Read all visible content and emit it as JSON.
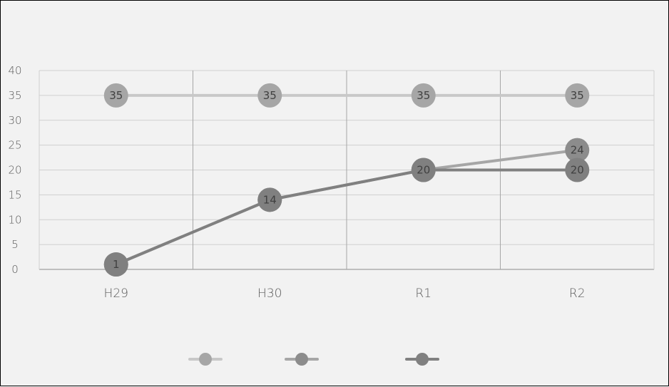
{
  "chart_data": {
    "type": "line",
    "title": "",
    "xlabel": "",
    "ylabel": "",
    "categories": [
      "H29",
      "H30",
      "R1",
      "R2"
    ],
    "ylim": [
      0,
      40
    ],
    "yticks": [
      0,
      5,
      10,
      15,
      20,
      25,
      30,
      35,
      40
    ],
    "grid": true,
    "legend_position": "bottom",
    "series": [
      {
        "values": [
          35,
          35,
          35,
          35
        ],
        "color": "#c8c8c8",
        "marker_color": "#a6a6a6"
      },
      {
        "values": [
          1,
          14,
          20,
          24
        ],
        "color": "#a6a6a6",
        "marker_color": "#8c8c8c"
      },
      {
        "values": [
          1,
          14,
          20,
          20
        ],
        "color": "#808080",
        "marker_color": "#808080"
      }
    ]
  }
}
